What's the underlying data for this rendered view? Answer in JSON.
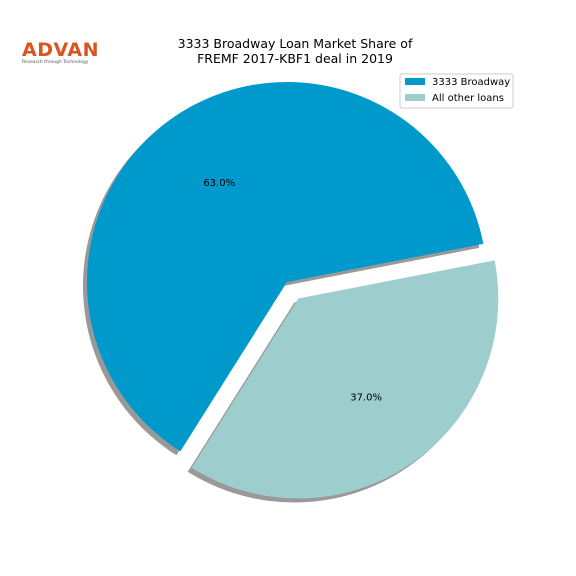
{
  "logo": {
    "name": "ADVAN",
    "tagline": "Research through Technology"
  },
  "chart_data": {
    "type": "pie",
    "title": "3333 Broadway Loan Market Share of\nFREMF 2017-KBF1 deal in 2019",
    "categories": [
      "3333 Broadway",
      "All other loans"
    ],
    "values": [
      63,
      37
    ],
    "value_labels": [
      "63.0%",
      "37.0%"
    ],
    "colors": [
      "#0099cc",
      "#9ecdcd"
    ],
    "shadow": true,
    "legend": "upper right"
  }
}
